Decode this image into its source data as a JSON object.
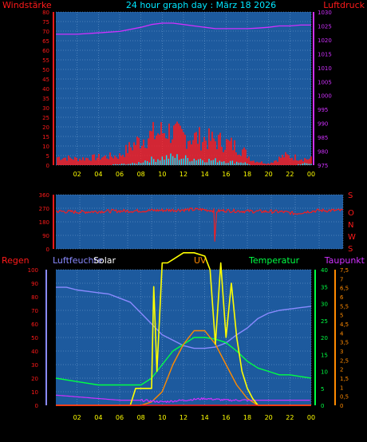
{
  "header": {
    "left_label": "Windstärke",
    "title": "24 hour graph day : März 18 2026",
    "right_label": "Luftdruck"
  },
  "colors": {
    "background": "#000000",
    "plot_bg": "#1d5a9e",
    "grid": "#7aa6d6",
    "red": "#ff1a1a",
    "magenta": "#d030ff",
    "cyan": "#00e6ff",
    "yellow": "#ffff00",
    "white": "#ffffff",
    "green": "#00ff44",
    "orange": "#ff8a00",
    "lavender": "#8a8aff"
  },
  "chart_data": [
    {
      "name": "wind-pressure",
      "type": "bar",
      "x_ticks": [
        "02",
        "04",
        "06",
        "08",
        "10",
        "12",
        "14",
        "16",
        "18",
        "20",
        "22",
        "00"
      ],
      "x_range": [
        0,
        24
      ],
      "left_axis": {
        "label": "Windstärke",
        "ylim": [
          0,
          80
        ],
        "ticks": [
          0,
          5,
          10,
          15,
          20,
          25,
          30,
          35,
          40,
          45,
          50,
          55,
          60,
          65,
          70,
          75,
          80
        ]
      },
      "right_axis": {
        "label": "Luftdruck",
        "ylim": [
          975,
          1030
        ],
        "ticks": [
          975,
          980,
          985,
          990,
          995,
          1000,
          1005,
          1010,
          1015,
          1020,
          1025,
          1030
        ]
      },
      "gust": {
        "x": [
          0.5,
          2,
          4,
          6,
          7.5,
          8.5,
          9.5,
          10.5,
          11.5,
          12.5,
          13.5,
          14.5,
          15.5,
          16.5,
          17.5,
          18.5,
          20,
          21.5,
          22.5,
          23.5
        ],
        "y": [
          5,
          4,
          5,
          6,
          14,
          18,
          20,
          22,
          19,
          18,
          17,
          16,
          15,
          13,
          10,
          3,
          1,
          6,
          5,
          4
        ]
      },
      "wind": {
        "x": [
          0.5,
          4,
          7.5,
          8.5,
          9.5,
          10.5,
          11.5,
          12.5,
          13.5,
          14.5,
          15.5,
          16.5,
          17.5,
          18.5,
          22,
          23.5
        ],
        "y": [
          0,
          0,
          1,
          3,
          4,
          5,
          5,
          4,
          4,
          3,
          3,
          2,
          2,
          0,
          0,
          1
        ]
      },
      "pressure": {
        "x": [
          0,
          2,
          4,
          6,
          8,
          9,
          10,
          11,
          12,
          13,
          14,
          15,
          16,
          17,
          18,
          19,
          20,
          21,
          22,
          23,
          24
        ],
        "y": [
          1022,
          1022,
          1022.5,
          1023,
          1024.5,
          1025.5,
          1026,
          1026,
          1025.5,
          1025,
          1024.5,
          1024,
          1024,
          1024,
          1024,
          1024.2,
          1024.5,
          1025,
          1025,
          1025.3,
          1025.3
        ]
      }
    },
    {
      "name": "wind-direction",
      "type": "line",
      "x_range": [
        0,
        24
      ],
      "left_axis": {
        "ylim": [
          0,
          360
        ],
        "ticks": [
          0,
          90,
          180,
          270,
          360
        ]
      },
      "right_labels": [
        "S",
        "O",
        "N",
        "W",
        "S"
      ],
      "x": [
        0,
        2,
        4,
        6,
        8,
        10,
        12,
        13.2,
        13.3,
        13.4,
        14,
        16,
        18,
        19,
        20,
        21,
        22,
        24
      ],
      "y": [
        250,
        245,
        250,
        252,
        255,
        258,
        262,
        255,
        0,
        250,
        255,
        250,
        248,
        245,
        235,
        248,
        255,
        255
      ]
    },
    {
      "name": "weather-combined",
      "type": "line",
      "labels": {
        "regen": "Regen",
        "luftfeuchte": "Luftfeuchte",
        "solar": "Solar",
        "uv": "UV",
        "temperatur": "Temperatur",
        "taupunkt": "Taupunkt"
      },
      "x_range": [
        0,
        24
      ],
      "axis_regen": {
        "ylim": [
          0,
          100
        ],
        "ticks": [
          0,
          10,
          20,
          30,
          40,
          50,
          60,
          70,
          80,
          90,
          100
        ]
      },
      "axis_feuchte": {
        "ylim": [
          0,
          100
        ]
      },
      "axis_temperatur": {
        "ylim": [
          0,
          40
        ],
        "ticks": [
          0,
          5,
          10,
          15,
          20,
          25,
          30,
          35,
          40
        ]
      },
      "axis_taupunkt": {
        "ylim": [
          0,
          5
        ],
        "ticks": [
          "0",
          "0,5",
          "1",
          "1,5",
          "2",
          "2,5",
          "3",
          "3,5",
          "4",
          "4,5",
          "5",
          "5,5",
          "6",
          "6,5",
          "7",
          "7,5"
        ]
      },
      "humidity": {
        "x": [
          0,
          1,
          2,
          3,
          4,
          5,
          6,
          7,
          8,
          9,
          10,
          11,
          12,
          13,
          14,
          15,
          16,
          17,
          18,
          19,
          20,
          21,
          22,
          23,
          24
        ],
        "y": [
          87,
          87,
          85,
          84,
          83,
          82,
          79,
          76,
          68,
          60,
          52,
          48,
          44,
          42,
          42,
          43,
          46,
          52,
          57,
          64,
          68,
          70,
          71,
          72,
          73
        ]
      },
      "temperature": {
        "x": [
          0,
          2,
          4,
          6,
          8,
          9,
          10,
          11,
          12,
          13,
          14,
          15,
          16,
          17,
          18,
          19,
          20,
          21,
          22,
          23,
          24
        ],
        "y": [
          8,
          7,
          6,
          6,
          6,
          8,
          12,
          16,
          18,
          20,
          20,
          19.5,
          18.5,
          16,
          13,
          11,
          10,
          9,
          9,
          8.5,
          8
        ]
      },
      "dewpoint": {
        "x": [
          0,
          2,
          4,
          6,
          8,
          10,
          12,
          14,
          16,
          18,
          20,
          22,
          24
        ],
        "y": [
          3,
          2.5,
          2,
          1.5,
          1.5,
          1,
          1.5,
          2,
          1.5,
          1.5,
          1.5,
          1.5,
          1.5
        ]
      },
      "solar": {
        "x": [
          0,
          7,
          7.5,
          8,
          8.5,
          9,
          9.2,
          9.5,
          10,
          10.5,
          11,
          12,
          13,
          14,
          14.5,
          15,
          15.5,
          16,
          16.5,
          17,
          17.5,
          18,
          18.5,
          19,
          24
        ],
        "y": [
          0,
          0,
          5,
          5,
          5,
          5,
          35,
          10,
          42,
          42,
          43,
          45,
          45,
          44,
          40,
          18,
          42,
          20,
          36,
          20,
          10,
          5,
          2,
          0,
          0
        ]
      },
      "uv": {
        "x": [
          0,
          8,
          9,
          10,
          11,
          12,
          13,
          14,
          15,
          16,
          17,
          18,
          19,
          24
        ],
        "y": [
          0,
          0,
          1,
          4,
          12,
          18,
          22,
          22,
          18,
          12,
          6,
          2,
          0,
          0
        ]
      },
      "rain": {
        "x": [
          0,
          24
        ],
        "y": [
          0,
          0
        ]
      }
    }
  ]
}
